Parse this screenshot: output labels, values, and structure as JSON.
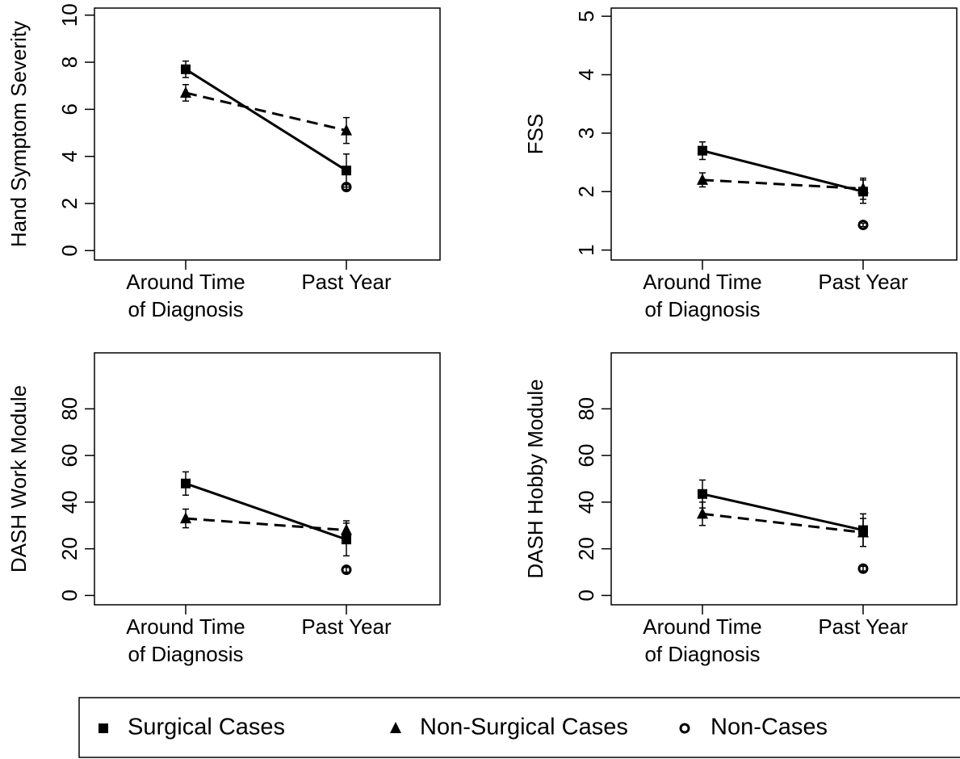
{
  "legend": [
    {
      "name": "Surgical Cases",
      "color": "#000000",
      "marker": "square",
      "line": "solid"
    },
    {
      "name": "Non-Surgical Cases",
      "color": "#000000",
      "marker": "triangle",
      "line": "dashed"
    },
    {
      "name": "Non-Cases",
      "color": "#000000",
      "marker": "circle",
      "line": "none"
    }
  ],
  "chart_data": [
    {
      "type": "line",
      "ylabel": "Hand Symptom Severity",
      "categories": [
        "Around Time\nof Diagnosis",
        "Past Year"
      ],
      "ylim": [
        -0.4,
        10.3
      ],
      "yticks": [
        0,
        2,
        4,
        6,
        8,
        10
      ],
      "series": [
        {
          "values": [
            7.7,
            3.4
          ],
          "errors": [
            0.35,
            0.7
          ]
        },
        {
          "values": [
            6.7,
            5.1
          ],
          "errors": [
            0.35,
            0.55
          ]
        },
        {
          "values": [
            null,
            2.7
          ],
          "errors": [
            null,
            0.1
          ]
        }
      ]
    },
    {
      "type": "line",
      "ylabel": "FSS",
      "categories": [
        "Around Time\nof Diagnosis",
        "Past Year"
      ],
      "ylim": [
        0.83,
        5.14
      ],
      "yticks": [
        1,
        2,
        3,
        4,
        5
      ],
      "series": [
        {
          "values": [
            2.7,
            2.0
          ],
          "errors": [
            0.15,
            0.2
          ]
        },
        {
          "values": [
            2.2,
            2.05
          ],
          "errors": [
            0.12,
            0.18
          ]
        },
        {
          "values": [
            null,
            1.43
          ],
          "errors": [
            null,
            0.03
          ]
        }
      ]
    },
    {
      "type": "line",
      "ylabel": "DASH Work Module",
      "categories": [
        "Around Time\nof Diagnosis",
        "Past Year"
      ],
      "ylim": [
        -4,
        104
      ],
      "yticks": [
        0,
        20,
        40,
        60,
        80
      ],
      "series": [
        {
          "values": [
            48,
            24
          ],
          "errors": [
            5,
            7
          ]
        },
        {
          "values": [
            33,
            28
          ],
          "errors": [
            4,
            4
          ]
        },
        {
          "values": [
            null,
            11
          ],
          "errors": [
            null,
            1
          ]
        }
      ]
    },
    {
      "type": "line",
      "ylabel": "DASH Hobby Module",
      "categories": [
        "Around Time\nof Diagnosis",
        "Past Year"
      ],
      "ylim": [
        -4,
        104
      ],
      "yticks": [
        0,
        20,
        40,
        60,
        80
      ],
      "series": [
        {
          "values": [
            43.5,
            28
          ],
          "errors": [
            6,
            7
          ]
        },
        {
          "values": [
            35,
            27
          ],
          "errors": [
            5,
            6
          ]
        },
        {
          "values": [
            null,
            11.5
          ],
          "errors": [
            null,
            1
          ]
        }
      ]
    }
  ]
}
